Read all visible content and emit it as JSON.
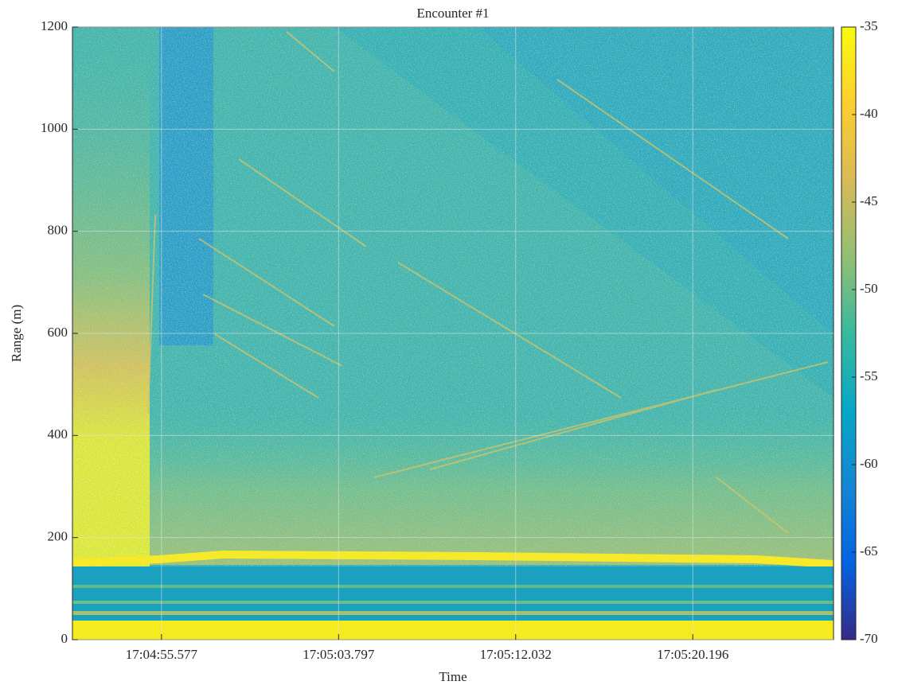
{
  "chart_data": {
    "type": "heatmap",
    "title": "Encounter #1",
    "x_label": "Time",
    "y_label": "Range (m)",
    "xticks": [
      "17:04:55.577",
      "17:05:03.797",
      "17:05:12.032",
      "17:05:20.196"
    ],
    "ylim": [
      0,
      1200
    ],
    "yticks": [
      0,
      200,
      400,
      600,
      800,
      1000,
      1200
    ],
    "grid": true,
    "colorbar": {
      "lim": [
        -70,
        -35
      ],
      "ticks": [
        -70,
        -65,
        -60,
        -55,
        -50,
        -45,
        -40,
        -35
      ]
    },
    "colormap": [
      "#352a87",
      "#0363e1",
      "#1485d4",
      "#06a7c6",
      "#38b99e",
      "#92bf73",
      "#d9ba56",
      "#fcce2e",
      "#f9fb0e"
    ]
  }
}
